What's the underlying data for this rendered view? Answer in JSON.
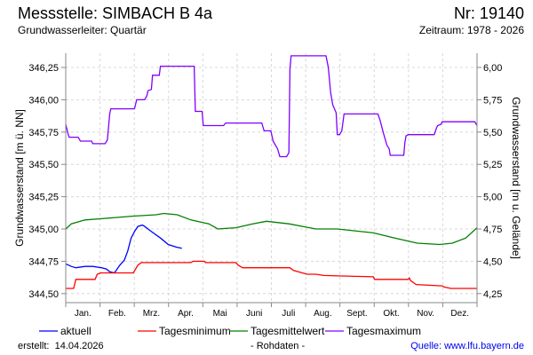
{
  "header": {
    "title": "Messstelle: SIMBACH B 4a",
    "number": "Nr: 19140",
    "aquifer": "Grundwasserleiter: Quartär",
    "period": "Zeitraum: 1978 - 2026"
  },
  "footer": {
    "created_label": "erstellt:",
    "created_date": "14.04.2026",
    "raw": "- Rohdaten -",
    "source": "Quelle: www.lfu.bayern.de"
  },
  "chart_data": {
    "type": "line",
    "ylabel": "Grundwasserstand [m ü. NN]",
    "ylabel_right": "Grundwasserstand [m u. Gelände]",
    "ylim": [
      344.43,
      346.36
    ],
    "yticks": [
      "344,50",
      "344,75",
      "345,00",
      "345,25",
      "345,50",
      "345,75",
      "346,00",
      "346,25"
    ],
    "ytick_values": [
      344.5,
      344.75,
      345.0,
      345.25,
      345.5,
      345.75,
      346.0,
      346.25
    ],
    "yticks_right": [
      "6,00",
      "5,75",
      "5,50",
      "5,25",
      "5,00",
      "4,75",
      "4,50",
      "4,25"
    ],
    "xlim": [
      0,
      365
    ],
    "xticks": [
      "Jan.",
      "Feb.",
      "Mrz.",
      "Apr.",
      "Mai",
      "Juni",
      "Juli",
      "Aug.",
      "Sept.",
      "Okt.",
      "Nov.",
      "Dez."
    ],
    "grid": true,
    "legend_position": "bottom",
    "colors": {
      "aktuell": "#0000ff",
      "Tagesminimum": "#ff0000",
      "Tagesmittelwert": "#008000",
      "Tagesmaximum": "#8000ff"
    },
    "series": [
      {
        "name": "aktuell",
        "points": [
          [
            0,
            344.73
          ],
          [
            5,
            344.71
          ],
          [
            9,
            344.7
          ],
          [
            17,
            344.71
          ],
          [
            24,
            344.71
          ],
          [
            32,
            344.7
          ],
          [
            36,
            344.69
          ],
          [
            39,
            344.67
          ],
          [
            43,
            344.66
          ],
          [
            44,
            344.67
          ],
          [
            48,
            344.72
          ],
          [
            52,
            344.76
          ],
          [
            55,
            344.83
          ],
          [
            58,
            344.93
          ],
          [
            61,
            344.98
          ],
          [
            64,
            345.02
          ],
          [
            68,
            345.03
          ],
          [
            70,
            345.02
          ],
          [
            76,
            344.98
          ],
          [
            84,
            344.93
          ],
          [
            91,
            344.88
          ],
          [
            98,
            344.86
          ],
          [
            103,
            344.85
          ]
        ]
      },
      {
        "name": "Tagesminimum",
        "points": [
          [
            0,
            344.54
          ],
          [
            7,
            344.54
          ],
          [
            9,
            344.61
          ],
          [
            26,
            344.61
          ],
          [
            28,
            344.65
          ],
          [
            31,
            344.66
          ],
          [
            60,
            344.66
          ],
          [
            64,
            344.72
          ],
          [
            67,
            344.74
          ],
          [
            111,
            344.74
          ],
          [
            113,
            344.75
          ],
          [
            123,
            344.75
          ],
          [
            124,
            344.74
          ],
          [
            151,
            344.74
          ],
          [
            153,
            344.72
          ],
          [
            157,
            344.7
          ],
          [
            181,
            344.7
          ],
          [
            199,
            344.7
          ],
          [
            202,
            344.68
          ],
          [
            210,
            344.66
          ],
          [
            214,
            344.65
          ],
          [
            222,
            344.65
          ],
          [
            229,
            344.64
          ],
          [
            273,
            344.63
          ],
          [
            274,
            344.61
          ],
          [
            304,
            344.61
          ],
          [
            305,
            344.62
          ],
          [
            306,
            344.6
          ],
          [
            311,
            344.57
          ],
          [
            334,
            344.56
          ],
          [
            336,
            344.55
          ],
          [
            342,
            344.54
          ],
          [
            365,
            344.54
          ]
        ]
      },
      {
        "name": "Tagesmittelwert",
        "points": [
          [
            0,
            345.0
          ],
          [
            5,
            345.04
          ],
          [
            17,
            345.07
          ],
          [
            32,
            345.08
          ],
          [
            60,
            345.1
          ],
          [
            80,
            345.11
          ],
          [
            87,
            345.12
          ],
          [
            99,
            345.11
          ],
          [
            111,
            345.07
          ],
          [
            127,
            345.04
          ],
          [
            135,
            345.0
          ],
          [
            151,
            345.01
          ],
          [
            166,
            345.04
          ],
          [
            178,
            345.06
          ],
          [
            198,
            345.04
          ],
          [
            222,
            345.0
          ],
          [
            241,
            345.0
          ],
          [
            273,
            344.97
          ],
          [
            292,
            344.93
          ],
          [
            312,
            344.89
          ],
          [
            332,
            344.88
          ],
          [
            343,
            344.89
          ],
          [
            355,
            344.93
          ],
          [
            365,
            345.01
          ]
        ]
      },
      {
        "name": "Tagesmaximum",
        "points": [
          [
            0,
            345.81
          ],
          [
            2,
            345.74
          ],
          [
            3,
            345.71
          ],
          [
            11,
            345.71
          ],
          [
            13,
            345.68
          ],
          [
            23,
            345.68
          ],
          [
            24,
            345.66
          ],
          [
            35,
            345.66
          ],
          [
            37,
            345.69
          ],
          [
            39,
            345.89
          ],
          [
            40,
            345.93
          ],
          [
            61,
            345.93
          ],
          [
            63,
            346.0
          ],
          [
            70,
            346.0
          ],
          [
            72,
            346.03
          ],
          [
            73,
            346.07
          ],
          [
            76,
            346.08
          ],
          [
            77,
            346.19
          ],
          [
            83,
            346.19
          ],
          [
            84,
            346.26
          ],
          [
            114,
            346.26
          ],
          [
            115,
            345.91
          ],
          [
            121,
            345.91
          ],
          [
            122,
            345.8
          ],
          [
            140,
            345.8
          ],
          [
            142,
            345.82
          ],
          [
            174,
            345.82
          ],
          [
            176,
            345.76
          ],
          [
            182,
            345.76
          ],
          [
            184,
            345.68
          ],
          [
            188,
            345.62
          ],
          [
            190,
            345.56
          ],
          [
            196,
            345.56
          ],
          [
            198,
            345.59
          ],
          [
            199,
            346.24
          ],
          [
            200,
            346.34
          ],
          [
            231,
            346.34
          ],
          [
            233,
            346.25
          ],
          [
            235,
            346.06
          ],
          [
            237,
            345.96
          ],
          [
            240,
            345.9
          ],
          [
            241,
            345.73
          ],
          [
            243,
            345.73
          ],
          [
            245,
            345.76
          ],
          [
            247,
            345.89
          ],
          [
            277,
            345.89
          ],
          [
            279,
            345.84
          ],
          [
            282,
            345.74
          ],
          [
            285,
            345.65
          ],
          [
            287,
            345.62
          ],
          [
            288,
            345.57
          ],
          [
            300,
            345.57
          ],
          [
            301,
            345.67
          ],
          [
            302,
            345.72
          ],
          [
            304,
            345.73
          ],
          [
            327,
            345.73
          ],
          [
            329,
            345.78
          ],
          [
            330,
            345.8
          ],
          [
            333,
            345.81
          ],
          [
            334,
            345.83
          ],
          [
            363,
            345.83
          ],
          [
            365,
            345.8
          ]
        ]
      }
    ]
  }
}
